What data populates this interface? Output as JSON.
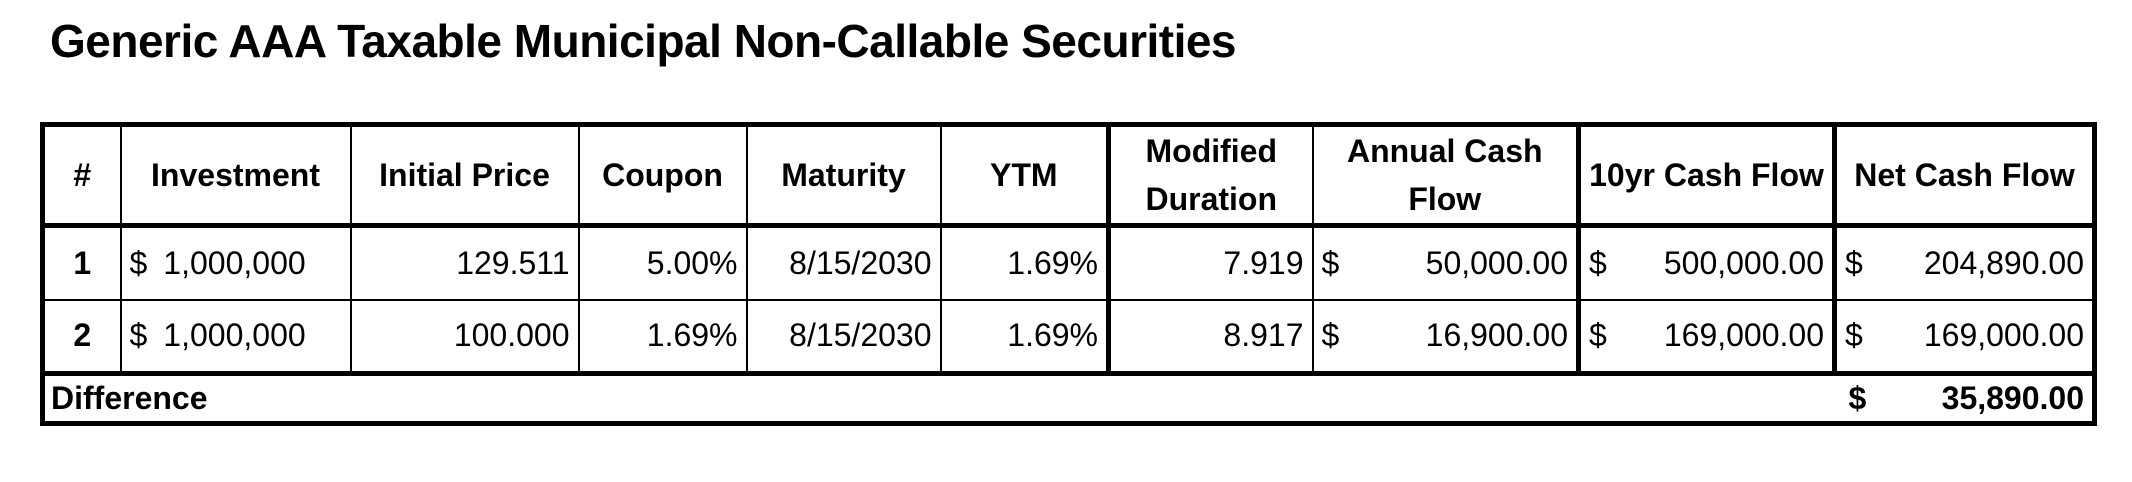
{
  "title": "Generic AAA Taxable Municipal Non-Callable Securities",
  "columns": [
    "#",
    "Investment",
    "Initial Price",
    "Coupon",
    "Maturity",
    "YTM",
    "Modified Duration",
    "Annual Cash Flow",
    "10yr Cash Flow",
    "Net Cash Flow"
  ],
  "rows": [
    {
      "idx": "1",
      "investment_cur": "$",
      "investment": "1,000,000",
      "initial_price": "129.511",
      "coupon": "5.00%",
      "maturity": "8/15/2030",
      "ytm": "1.69%",
      "modified_duration": "7.919",
      "annual_cur": "$",
      "annual_cash_flow": "50,000.00",
      "tenyr_cur": "$",
      "tenyr_cash_flow": "500,000.00",
      "net_cur": "$",
      "net_cash_flow": "204,890.00"
    },
    {
      "idx": "2",
      "investment_cur": "$",
      "investment": "1,000,000",
      "initial_price": "100.000",
      "coupon": "1.69%",
      "maturity": "8/15/2030",
      "ytm": "1.69%",
      "modified_duration": "8.917",
      "annual_cur": "$",
      "annual_cash_flow": "16,900.00",
      "tenyr_cur": "$",
      "tenyr_cash_flow": "169,000.00",
      "net_cur": "$",
      "net_cash_flow": "169,000.00"
    }
  ],
  "difference": {
    "label": "Difference",
    "currency": "$",
    "value": "35,890.00"
  }
}
